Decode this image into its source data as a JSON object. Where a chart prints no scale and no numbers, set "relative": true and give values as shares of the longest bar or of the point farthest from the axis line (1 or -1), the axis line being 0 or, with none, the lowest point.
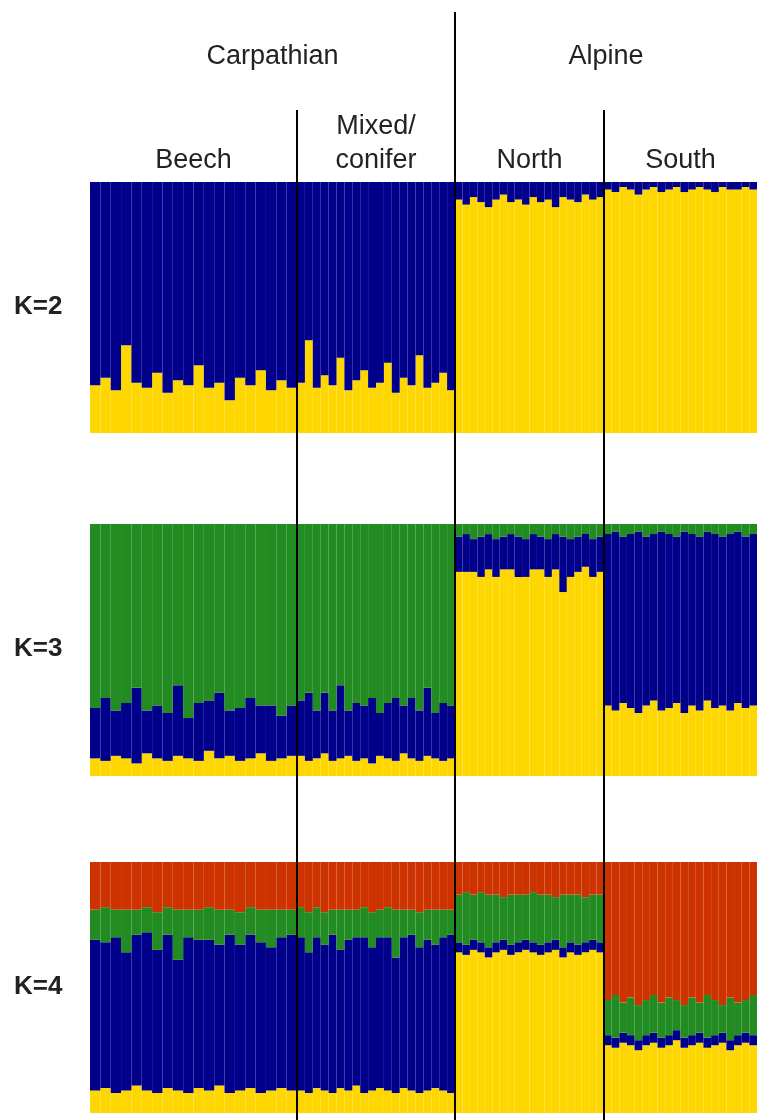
{
  "chart_data": [
    {
      "type": "bar",
      "stacked": true,
      "relative": true,
      "title": "Beech",
      "annotations": [
        "Carpathian",
        "K=2"
      ],
      "categories": [
        null,
        null,
        null,
        null,
        null,
        null,
        null,
        null,
        null,
        null,
        null,
        null,
        null,
        null,
        null,
        null,
        null,
        null,
        null,
        null
      ],
      "series": [
        {
          "color": "#ffd700",
          "values": [
            0.19,
            0.22,
            0.17,
            0.35,
            0.2,
            0.18,
            0.24,
            0.16,
            0.21,
            0.19,
            0.27,
            0.18,
            0.2,
            0.13,
            0.22,
            0.19,
            0.25,
            0.17,
            0.21,
            0.18
          ]
        },
        {
          "color": "#00008b",
          "values": [
            0.81,
            0.78,
            0.83,
            0.65,
            0.8,
            0.82,
            0.76,
            0.84,
            0.79,
            0.81,
            0.73,
            0.82,
            0.8,
            0.87,
            0.78,
            0.81,
            0.75,
            0.83,
            0.79,
            0.82
          ]
        }
      ]
    },
    {
      "type": "bar",
      "stacked": true,
      "relative": true,
      "title": "Mixed/ conifer",
      "categories": [
        null,
        null,
        null,
        null,
        null,
        null,
        null,
        null,
        null,
        null,
        null,
        null,
        null,
        null,
        null,
        null,
        null,
        null,
        null,
        null
      ],
      "series": [
        {
          "color": "#ffd700",
          "values": [
            0.2,
            0.37,
            0.18,
            0.23,
            0.19,
            0.3,
            0.17,
            0.21,
            0.25,
            0.18,
            0.2,
            0.28,
            0.16,
            0.22,
            0.19,
            0.31,
            0.18,
            0.2,
            0.24,
            0.17
          ]
        },
        {
          "color": "#00008b",
          "values": [
            0.8,
            0.63,
            0.82,
            0.77,
            0.81,
            0.7,
            0.83,
            0.79,
            0.75,
            0.82,
            0.8,
            0.72,
            0.84,
            0.78,
            0.81,
            0.69,
            0.82,
            0.8,
            0.76,
            0.83
          ]
        }
      ]
    },
    {
      "type": "bar",
      "stacked": true,
      "relative": true,
      "title": "North",
      "annotations": [
        "Alpine"
      ],
      "categories": [
        null,
        null,
        null,
        null,
        null,
        null,
        null,
        null,
        null,
        null,
        null,
        null,
        null,
        null,
        null,
        null,
        null,
        null,
        null,
        null
      ],
      "series": [
        {
          "color": "#ffd700",
          "values": [
            0.93,
            0.91,
            0.94,
            0.92,
            0.9,
            0.93,
            0.95,
            0.92,
            0.93,
            0.91,
            0.94,
            0.92,
            0.93,
            0.9,
            0.94,
            0.93,
            0.92,
            0.95,
            0.93,
            0.94
          ]
        },
        {
          "color": "#00008b",
          "values": [
            0.07,
            0.09,
            0.06,
            0.08,
            0.1,
            0.07,
            0.05,
            0.08,
            0.07,
            0.09,
            0.06,
            0.08,
            0.07,
            0.1,
            0.06,
            0.07,
            0.08,
            0.05,
            0.07,
            0.06
          ]
        }
      ]
    },
    {
      "type": "bar",
      "stacked": true,
      "relative": true,
      "title": "South",
      "categories": [
        null,
        null,
        null,
        null,
        null,
        null,
        null,
        null,
        null,
        null,
        null,
        null,
        null,
        null,
        null,
        null,
        null,
        null,
        null,
        null
      ],
      "series": [
        {
          "color": "#ffd700",
          "values": [
            0.97,
            0.96,
            0.98,
            0.97,
            0.95,
            0.97,
            0.98,
            0.96,
            0.97,
            0.98,
            0.96,
            0.97,
            0.98,
            0.97,
            0.96,
            0.98,
            0.97,
            0.97,
            0.98,
            0.97
          ]
        },
        {
          "color": "#00008b",
          "values": [
            0.03,
            0.04,
            0.02,
            0.03,
            0.05,
            0.03,
            0.02,
            0.04,
            0.03,
            0.02,
            0.04,
            0.03,
            0.02,
            0.03,
            0.04,
            0.02,
            0.03,
            0.03,
            0.02,
            0.03
          ]
        }
      ]
    },
    {
      "type": "bar",
      "stacked": true,
      "relative": true,
      "annotations": [
        "K=3"
      ],
      "categories": [
        null,
        null,
        null,
        null,
        null,
        null,
        null,
        null,
        null,
        null,
        null,
        null,
        null,
        null,
        null,
        null,
        null,
        null,
        null,
        null
      ],
      "series": [
        {
          "color": "#ffd700",
          "values": [
            0.07,
            0.06,
            0.08,
            0.07,
            0.05,
            0.09,
            0.07,
            0.06,
            0.08,
            0.07,
            0.06,
            0.1,
            0.07,
            0.08,
            0.06,
            0.07,
            0.09,
            0.06,
            0.07,
            0.08
          ]
        },
        {
          "color": "#00008b",
          "values": [
            0.2,
            0.25,
            0.18,
            0.22,
            0.3,
            0.17,
            0.21,
            0.19,
            0.28,
            0.16,
            0.23,
            0.2,
            0.26,
            0.18,
            0.21,
            0.24,
            0.19,
            0.22,
            0.17,
            0.2
          ]
        },
        {
          "color": "#228b22",
          "values": [
            0.73,
            0.69,
            0.74,
            0.71,
            0.65,
            0.74,
            0.72,
            0.75,
            0.64,
            0.77,
            0.71,
            0.7,
            0.67,
            0.74,
            0.73,
            0.69,
            0.72,
            0.72,
            0.76,
            0.72
          ]
        }
      ]
    },
    {
      "type": "bar",
      "stacked": true,
      "relative": true,
      "categories": [
        null,
        null,
        null,
        null,
        null,
        null,
        null,
        null,
        null,
        null,
        null,
        null,
        null,
        null,
        null,
        null,
        null,
        null,
        null,
        null
      ],
      "series": [
        {
          "color": "#ffd700",
          "values": [
            0.08,
            0.06,
            0.07,
            0.09,
            0.06,
            0.07,
            0.08,
            0.06,
            0.07,
            0.05,
            0.08,
            0.07,
            0.06,
            0.09,
            0.07,
            0.06,
            0.08,
            0.07,
            0.06,
            0.07
          ]
        },
        {
          "color": "#00008b",
          "values": [
            0.22,
            0.27,
            0.19,
            0.24,
            0.2,
            0.29,
            0.18,
            0.23,
            0.21,
            0.26,
            0.17,
            0.22,
            0.25,
            0.19,
            0.24,
            0.2,
            0.27,
            0.18,
            0.23,
            0.21
          ]
        },
        {
          "color": "#228b22",
          "values": [
            0.7,
            0.67,
            0.74,
            0.67,
            0.74,
            0.64,
            0.74,
            0.71,
            0.72,
            0.69,
            0.75,
            0.71,
            0.69,
            0.72,
            0.69,
            0.74,
            0.65,
            0.75,
            0.71,
            0.72
          ]
        }
      ]
    },
    {
      "type": "bar",
      "stacked": true,
      "relative": true,
      "categories": [
        null,
        null,
        null,
        null,
        null,
        null,
        null,
        null,
        null,
        null,
        null,
        null,
        null,
        null,
        null,
        null,
        null,
        null,
        null,
        null
      ],
      "series": [
        {
          "color": "#ffd700",
          "values": [
            0.81,
            0.81,
            0.81,
            0.79,
            0.82,
            0.79,
            0.82,
            0.82,
            0.79,
            0.79,
            0.82,
            0.82,
            0.79,
            0.82,
            0.73,
            0.79,
            0.81,
            0.83,
            0.79,
            0.81
          ]
        },
        {
          "color": "#00008b",
          "values": [
            0.14,
            0.15,
            0.13,
            0.16,
            0.14,
            0.15,
            0.13,
            0.14,
            0.16,
            0.15,
            0.14,
            0.13,
            0.15,
            0.14,
            0.22,
            0.15,
            0.14,
            0.13,
            0.15,
            0.14
          ]
        },
        {
          "color": "#228b22",
          "values": [
            0.05,
            0.04,
            0.06,
            0.05,
            0.04,
            0.06,
            0.05,
            0.04,
            0.05,
            0.06,
            0.04,
            0.05,
            0.06,
            0.04,
            0.05,
            0.06,
            0.05,
            0.04,
            0.06,
            0.05
          ]
        }
      ]
    },
    {
      "type": "bar",
      "stacked": true,
      "relative": true,
      "categories": [
        null,
        null,
        null,
        null,
        null,
        null,
        null,
        null,
        null,
        null,
        null,
        null,
        null,
        null,
        null,
        null,
        null,
        null,
        null,
        null
      ],
      "series": [
        {
          "color": "#ffd700",
          "values": [
            0.28,
            0.26,
            0.29,
            0.27,
            0.25,
            0.28,
            0.3,
            0.26,
            0.27,
            0.29,
            0.25,
            0.28,
            0.26,
            0.3,
            0.27,
            0.28,
            0.26,
            0.29,
            0.27,
            0.28
          ]
        },
        {
          "color": "#00008b",
          "values": [
            0.68,
            0.71,
            0.66,
            0.69,
            0.72,
            0.67,
            0.66,
            0.71,
            0.69,
            0.66,
            0.72,
            0.68,
            0.69,
            0.67,
            0.69,
            0.67,
            0.7,
            0.68,
            0.68,
            0.68
          ]
        },
        {
          "color": "#228b22",
          "values": [
            0.04,
            0.03,
            0.05,
            0.04,
            0.03,
            0.05,
            0.04,
            0.03,
            0.04,
            0.05,
            0.03,
            0.04,
            0.05,
            0.03,
            0.04,
            0.05,
            0.04,
            0.03,
            0.05,
            0.04
          ]
        }
      ]
    },
    {
      "type": "bar",
      "stacked": true,
      "relative": true,
      "annotations": [
        "K=4"
      ],
      "categories": [
        null,
        null,
        null,
        null,
        null,
        null,
        null,
        null,
        null,
        null,
        null,
        null,
        null,
        null,
        null,
        null,
        null,
        null,
        null,
        null
      ],
      "series": [
        {
          "color": "#ffd700",
          "values": [
            0.09,
            0.1,
            0.08,
            0.09,
            0.11,
            0.09,
            0.08,
            0.1,
            0.09,
            0.08,
            0.1,
            0.09,
            0.11,
            0.08,
            0.09,
            0.1,
            0.08,
            0.09,
            0.1,
            0.09
          ]
        },
        {
          "color": "#00008b",
          "values": [
            0.6,
            0.58,
            0.62,
            0.55,
            0.6,
            0.63,
            0.57,
            0.61,
            0.52,
            0.62,
            0.59,
            0.6,
            0.56,
            0.63,
            0.58,
            0.61,
            0.6,
            0.57,
            0.6,
            0.62
          ]
        },
        {
          "color": "#228b22",
          "values": [
            0.12,
            0.14,
            0.11,
            0.17,
            0.1,
            0.1,
            0.15,
            0.11,
            0.2,
            0.11,
            0.12,
            0.13,
            0.14,
            0.1,
            0.13,
            0.11,
            0.13,
            0.15,
            0.11,
            0.1
          ]
        },
        {
          "color": "#cc3300",
          "values": [
            0.19,
            0.18,
            0.19,
            0.19,
            0.19,
            0.18,
            0.2,
            0.18,
            0.19,
            0.19,
            0.19,
            0.18,
            0.19,
            0.19,
            0.2,
            0.18,
            0.19,
            0.19,
            0.19,
            0.19
          ]
        }
      ]
    },
    {
      "type": "bar",
      "stacked": true,
      "relative": true,
      "categories": [
        null,
        null,
        null,
        null,
        null,
        null,
        null,
        null,
        null,
        null,
        null,
        null,
        null,
        null,
        null,
        null,
        null,
        null,
        null,
        null
      ],
      "series": [
        {
          "color": "#ffd700",
          "values": [
            0.09,
            0.08,
            0.1,
            0.09,
            0.08,
            0.1,
            0.09,
            0.11,
            0.08,
            0.09,
            0.1,
            0.09,
            0.08,
            0.1,
            0.09,
            0.08,
            0.09,
            0.1,
            0.09,
            0.08
          ]
        },
        {
          "color": "#00008b",
          "values": [
            0.61,
            0.56,
            0.6,
            0.58,
            0.63,
            0.55,
            0.6,
            0.59,
            0.62,
            0.57,
            0.6,
            0.61,
            0.54,
            0.6,
            0.62,
            0.58,
            0.6,
            0.57,
            0.61,
            0.63
          ]
        },
        {
          "color": "#228b22",
          "values": [
            0.12,
            0.16,
            0.12,
            0.13,
            0.1,
            0.16,
            0.12,
            0.11,
            0.12,
            0.14,
            0.11,
            0.12,
            0.19,
            0.11,
            0.1,
            0.14,
            0.12,
            0.14,
            0.11,
            0.1
          ]
        },
        {
          "color": "#cc3300",
          "values": [
            0.18,
            0.2,
            0.18,
            0.2,
            0.19,
            0.19,
            0.19,
            0.19,
            0.18,
            0.2,
            0.19,
            0.18,
            0.19,
            0.19,
            0.19,
            0.2,
            0.19,
            0.19,
            0.19,
            0.19
          ]
        }
      ]
    },
    {
      "type": "bar",
      "stacked": true,
      "relative": true,
      "categories": [
        null,
        null,
        null,
        null,
        null,
        null,
        null,
        null,
        null,
        null,
        null,
        null,
        null,
        null,
        null,
        null,
        null,
        null,
        null,
        null
      ],
      "series": [
        {
          "color": "#ffd700",
          "values": [
            0.64,
            0.63,
            0.65,
            0.64,
            0.62,
            0.64,
            0.65,
            0.63,
            0.64,
            0.65,
            0.64,
            0.63,
            0.64,
            0.65,
            0.62,
            0.64,
            0.63,
            0.64,
            0.65,
            0.64
          ]
        },
        {
          "color": "#00008b",
          "values": [
            0.04,
            0.04,
            0.04,
            0.04,
            0.04,
            0.04,
            0.04,
            0.04,
            0.04,
            0.04,
            0.04,
            0.04,
            0.04,
            0.04,
            0.04,
            0.04,
            0.04,
            0.04,
            0.04,
            0.04
          ]
        },
        {
          "color": "#228b22",
          "values": [
            0.19,
            0.21,
            0.18,
            0.2,
            0.21,
            0.19,
            0.17,
            0.2,
            0.19,
            0.18,
            0.2,
            0.2,
            0.19,
            0.17,
            0.21,
            0.19,
            0.2,
            0.18,
            0.18,
            0.19
          ]
        },
        {
          "color": "#cc3300",
          "values": [
            0.13,
            0.12,
            0.13,
            0.12,
            0.13,
            0.13,
            0.14,
            0.13,
            0.13,
            0.13,
            0.12,
            0.13,
            0.13,
            0.14,
            0.13,
            0.13,
            0.13,
            0.14,
            0.13,
            0.13
          ]
        }
      ]
    },
    {
      "type": "bar",
      "stacked": true,
      "relative": true,
      "categories": [
        null,
        null,
        null,
        null,
        null,
        null,
        null,
        null,
        null,
        null,
        null,
        null,
        null,
        null,
        null,
        null,
        null,
        null,
        null,
        null
      ],
      "series": [
        {
          "color": "#ffd700",
          "values": [
            0.27,
            0.26,
            0.28,
            0.27,
            0.25,
            0.27,
            0.28,
            0.26,
            0.27,
            0.29,
            0.26,
            0.27,
            0.28,
            0.26,
            0.27,
            0.28,
            0.25,
            0.27,
            0.28,
            0.27
          ]
        },
        {
          "color": "#00008b",
          "values": [
            0.04,
            0.04,
            0.04,
            0.04,
            0.04,
            0.04,
            0.04,
            0.04,
            0.04,
            0.04,
            0.04,
            0.04,
            0.04,
            0.04,
            0.04,
            0.04,
            0.04,
            0.04,
            0.04,
            0.04
          ]
        },
        {
          "color": "#228b22",
          "values": [
            0.14,
            0.17,
            0.12,
            0.15,
            0.14,
            0.14,
            0.15,
            0.14,
            0.15,
            0.12,
            0.13,
            0.15,
            0.12,
            0.17,
            0.14,
            0.11,
            0.17,
            0.13,
            0.13,
            0.16
          ]
        },
        {
          "color": "#cc3300",
          "values": [
            0.55,
            0.53,
            0.56,
            0.54,
            0.57,
            0.55,
            0.53,
            0.56,
            0.54,
            0.55,
            0.57,
            0.54,
            0.56,
            0.53,
            0.55,
            0.57,
            0.54,
            0.56,
            0.55,
            0.53
          ]
        }
      ]
    }
  ]
}
